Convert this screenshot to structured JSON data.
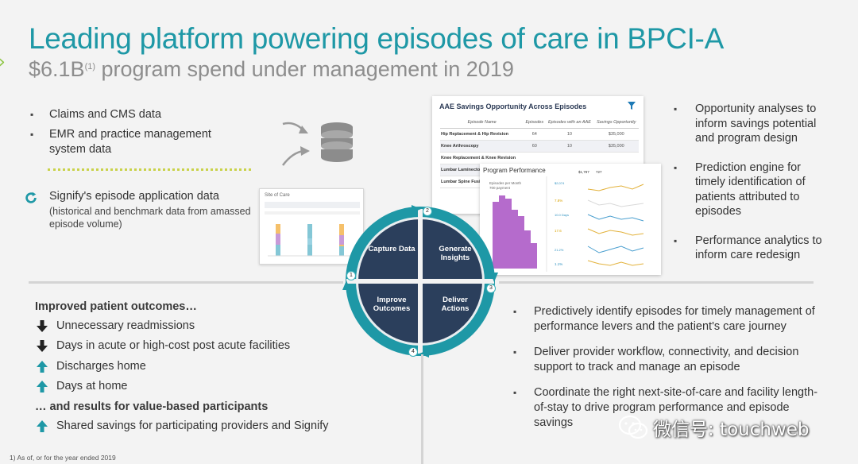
{
  "title": "Leading platform powering episodes of care in BPCI-A",
  "subtitle": {
    "text_before": "$6.1B",
    "sup": "(1)",
    "text_after": " program spend under management in 2019"
  },
  "data_sources": {
    "items": [
      "Claims and CMS data",
      "EMR and practice management system data"
    ],
    "signify_main": "Signify's episode application data",
    "signify_sub": "(historical and benchmark data from amassed episode volume)"
  },
  "site_of_care_card": {
    "title": "Site of Care"
  },
  "aae_card": {
    "title": "AAE Savings Opportunity Across Episodes",
    "columns": [
      "Episode Name",
      "Episodes",
      "Episodes with an AAE",
      "Savings Opportunity"
    ],
    "rows": [
      [
        "Hip Replacement & Hip Revision",
        "64",
        "10",
        "$35,000"
      ],
      [
        "Knee Arthroscopy",
        "60",
        "10",
        "$35,000"
      ],
      [
        "Knee Replacement & Knee Revision",
        "",
        "",
        ""
      ],
      [
        "Lumbar Laminectomy",
        "",
        "",
        ""
      ],
      [
        "Lumbar Spine Fusion",
        "",
        "",
        ""
      ]
    ]
  },
  "performance_card": {
    "title": "Program Performance",
    "subtitle_line1": "Episodes per Month",
    "subtitle_line2": "700 payment",
    "stats": [
      "$1,787",
      "727"
    ],
    "metrics": [
      "$2,074",
      "7.8%",
      "10.0 Days",
      "17.6",
      "21.2%",
      "1.1%"
    ]
  },
  "wheel": {
    "quadrants": [
      {
        "label": "Capture Data",
        "num": "1"
      },
      {
        "label": "Generate Insights",
        "num": "2"
      },
      {
        "label": "Deliver Actions",
        "num": "3"
      },
      {
        "label": "Improve Outcomes",
        "num": "4"
      }
    ]
  },
  "analytics": {
    "items": [
      "Opportunity analyses to inform savings potential and program design",
      "Prediction engine for timely identification of patients attributed to episodes",
      "Performance analytics to inform care redesign"
    ]
  },
  "outcomes": {
    "header": "Improved patient outcomes…",
    "items": [
      {
        "dir": "down",
        "text": "Unnecessary readmissions"
      },
      {
        "dir": "down",
        "text": "Days in acute or high-cost post acute facilities"
      },
      {
        "dir": "up",
        "text": "Discharges home"
      },
      {
        "dir": "up",
        "text": "Days at home"
      }
    ],
    "header2": "… and results for value-based participants",
    "items2": [
      {
        "dir": "up",
        "text": "Shared savings for participating providers and Signify"
      }
    ]
  },
  "actions": {
    "items": [
      "Predictively identify episodes for timely management of performance levers and the patient's care journey",
      "Deliver provider workflow, connectivity, and decision support to track and manage an episode",
      "Coordinate the right next-site-of-care and facility length-of-stay to drive program performance and episode savings"
    ]
  },
  "footnote": "1) As of, or for the year ended 2019",
  "watermark": "微信号: touchweb",
  "colors": {
    "title": "#1e98a6",
    "wheel_dark": "#2b3f5c",
    "wheel_ring": "#1e98a6",
    "arrow_dark": "#222222",
    "arrow_teal": "#1e98a6",
    "accent_green": "#8bc43f"
  }
}
